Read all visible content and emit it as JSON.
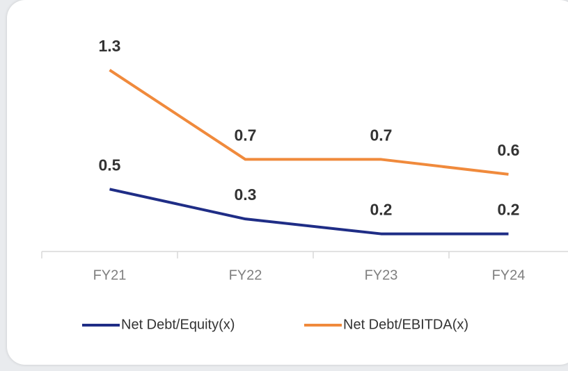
{
  "chart_data": {
    "type": "line",
    "categories": [
      "FY21",
      "FY22",
      "FY23",
      "FY24"
    ],
    "series": [
      {
        "name": "Net Debt/Equity(x)",
        "color": "#1f2d86",
        "values": [
          0.5,
          0.3,
          0.2,
          0.2
        ]
      },
      {
        "name": "Net Debt/EBITDA(x)",
        "color": "#f08a3c",
        "values": [
          1.3,
          0.7,
          0.7,
          0.6
        ]
      }
    ],
    "ylim": [
      0.1,
      1.5
    ],
    "legend": "bottom"
  }
}
